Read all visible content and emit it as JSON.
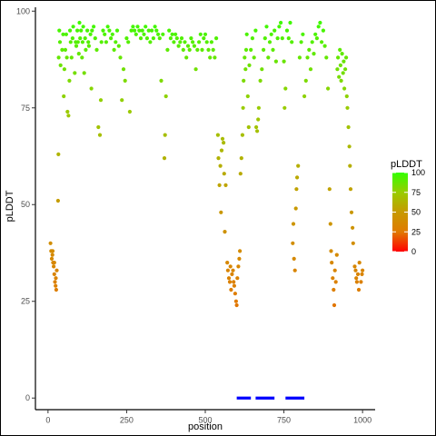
{
  "chart_data": {
    "type": "scatter",
    "xlabel": "position",
    "ylabel": "pLDDT",
    "xlim": [
      -40,
      1040
    ],
    "ylim": [
      -3,
      101
    ],
    "x_ticks": [
      0,
      250,
      500,
      750,
      1000
    ],
    "y_ticks": [
      0,
      25,
      50,
      75,
      100
    ],
    "grid": false,
    "legend": {
      "title": "pLDDT",
      "position": "right",
      "breaks": [
        0,
        25,
        50,
        75,
        100
      ],
      "colors": [
        "#ff0000",
        "#e07a00",
        "#c79a00",
        "#99cc00",
        "#33ff00"
      ]
    },
    "segment_color": "#0000ff",
    "segments": [
      {
        "x0": 600,
        "x1": 645,
        "y": 0
      },
      {
        "x0": 660,
        "x1": 720,
        "y": 0
      },
      {
        "x0": 755,
        "x1": 815,
        "y": 0
      }
    ],
    "points": [
      [
        8,
        40
      ],
      [
        10,
        38
      ],
      [
        12,
        36
      ],
      [
        14,
        37
      ],
      [
        16,
        35
      ],
      [
        18,
        34
      ],
      [
        20,
        32
      ],
      [
        22,
        30
      ],
      [
        24,
        29
      ],
      [
        26,
        28
      ],
      [
        15,
        38
      ],
      [
        20,
        35
      ],
      [
        25,
        31
      ],
      [
        28,
        33
      ],
      [
        32,
        51
      ],
      [
        33,
        63
      ],
      [
        34,
        88
      ],
      [
        36,
        95
      ],
      [
        38,
        92
      ],
      [
        40,
        86
      ],
      [
        45,
        90
      ],
      [
        48,
        94
      ],
      [
        50,
        78
      ],
      [
        52,
        85
      ],
      [
        55,
        90
      ],
      [
        58,
        94
      ],
      [
        60,
        88
      ],
      [
        62,
        74
      ],
      [
        65,
        73
      ],
      [
        68,
        82
      ],
      [
        70,
        95
      ],
      [
        72,
        92
      ],
      [
        75,
        88
      ],
      [
        78,
        93
      ],
      [
        80,
        96
      ],
      [
        85,
        84
      ],
      [
        88,
        92
      ],
      [
        90,
        91
      ],
      [
        93,
        95
      ],
      [
        95,
        92
      ],
      [
        98,
        89
      ],
      [
        100,
        97
      ],
      [
        102,
        93
      ],
      [
        105,
        95
      ],
      [
        108,
        88
      ],
      [
        110,
        92
      ],
      [
        112,
        96
      ],
      [
        115,
        84
      ],
      [
        118,
        93
      ],
      [
        120,
        90
      ],
      [
        125,
        95
      ],
      [
        128,
        92
      ],
      [
        130,
        91
      ],
      [
        135,
        94
      ],
      [
        138,
        80
      ],
      [
        140,
        95
      ],
      [
        145,
        96
      ],
      [
        150,
        93
      ],
      [
        155,
        90
      ],
      [
        160,
        70
      ],
      [
        165,
        68
      ],
      [
        168,
        77
      ],
      [
        170,
        92
      ],
      [
        175,
        95
      ],
      [
        180,
        94
      ],
      [
        185,
        92
      ],
      [
        190,
        96
      ],
      [
        195,
        95
      ],
      [
        200,
        93
      ],
      [
        205,
        94
      ],
      [
        210,
        90
      ],
      [
        215,
        92
      ],
      [
        220,
        95
      ],
      [
        225,
        91
      ],
      [
        230,
        88
      ],
      [
        235,
        77
      ],
      [
        240,
        85
      ],
      [
        245,
        82
      ],
      [
        250,
        93
      ],
      [
        255,
        92
      ],
      [
        260,
        74
      ],
      [
        265,
        95
      ],
      [
        270,
        96
      ],
      [
        275,
        95
      ],
      [
        280,
        94
      ],
      [
        285,
        96
      ],
      [
        290,
        95
      ],
      [
        295,
        93
      ],
      [
        300,
        95
      ],
      [
        305,
        94
      ],
      [
        310,
        96
      ],
      [
        315,
        93
      ],
      [
        320,
        95
      ],
      [
        325,
        92
      ],
      [
        330,
        95
      ],
      [
        335,
        93
      ],
      [
        340,
        96
      ],
      [
        345,
        95
      ],
      [
        350,
        94
      ],
      [
        355,
        93
      ],
      [
        360,
        82
      ],
      [
        365,
        94
      ],
      [
        370,
        62
      ],
      [
        372,
        68
      ],
      [
        375,
        78
      ],
      [
        380,
        90
      ],
      [
        385,
        95
      ],
      [
        390,
        93
      ],
      [
        395,
        94
      ],
      [
        400,
        92
      ],
      [
        405,
        94
      ],
      [
        410,
        93
      ],
      [
        415,
        91
      ],
      [
        420,
        92
      ],
      [
        425,
        93
      ],
      [
        430,
        90
      ],
      [
        435,
        92
      ],
      [
        440,
        88
      ],
      [
        445,
        91
      ],
      [
        450,
        90
      ],
      [
        455,
        93
      ],
      [
        460,
        92
      ],
      [
        465,
        91
      ],
      [
        470,
        85
      ],
      [
        475,
        90
      ],
      [
        480,
        92
      ],
      [
        485,
        94
      ],
      [
        490,
        90
      ],
      [
        495,
        93
      ],
      [
        500,
        94
      ],
      [
        505,
        92
      ],
      [
        510,
        90
      ],
      [
        515,
        88
      ],
      [
        520,
        92
      ],
      [
        525,
        90
      ],
      [
        530,
        88
      ],
      [
        535,
        93
      ],
      [
        540,
        68
      ],
      [
        542,
        62
      ],
      [
        545,
        55
      ],
      [
        548,
        60
      ],
      [
        550,
        48
      ],
      [
        552,
        64
      ],
      [
        555,
        67
      ],
      [
        558,
        66
      ],
      [
        560,
        58
      ],
      [
        562,
        43
      ],
      [
        565,
        55
      ],
      [
        570,
        35
      ],
      [
        572,
        33
      ],
      [
        575,
        31
      ],
      [
        578,
        30
      ],
      [
        580,
        34
      ],
      [
        582,
        28
      ],
      [
        585,
        32
      ],
      [
        588,
        33
      ],
      [
        590,
        30
      ],
      [
        592,
        29
      ],
      [
        595,
        27
      ],
      [
        598,
        25
      ],
      [
        600,
        24
      ],
      [
        602,
        31
      ],
      [
        605,
        34
      ],
      [
        608,
        36
      ],
      [
        610,
        38
      ],
      [
        612,
        58
      ],
      [
        615,
        62
      ],
      [
        618,
        68
      ],
      [
        620,
        75
      ],
      [
        622,
        82
      ],
      [
        625,
        88
      ],
      [
        628,
        85
      ],
      [
        630,
        90
      ],
      [
        632,
        94
      ],
      [
        635,
        78
      ],
      [
        638,
        70
      ],
      [
        640,
        86
      ],
      [
        645,
        90
      ],
      [
        650,
        93
      ],
      [
        655,
        88
      ],
      [
        660,
        95
      ],
      [
        662,
        70
      ],
      [
        665,
        69
      ],
      [
        668,
        72
      ],
      [
        670,
        75
      ],
      [
        675,
        82
      ],
      [
        680,
        85
      ],
      [
        685,
        90
      ],
      [
        690,
        93
      ],
      [
        695,
        96
      ],
      [
        700,
        88
      ],
      [
        705,
        92
      ],
      [
        710,
        94
      ],
      [
        715,
        90
      ],
      [
        720,
        95
      ],
      [
        725,
        87
      ],
      [
        730,
        93
      ],
      [
        735,
        96
      ],
      [
        740,
        97
      ],
      [
        745,
        93
      ],
      [
        750,
        87
      ],
      [
        752,
        75
      ],
      [
        755,
        80
      ],
      [
        760,
        95
      ],
      [
        765,
        93
      ],
      [
        770,
        97
      ],
      [
        775,
        92
      ],
      [
        778,
        40
      ],
      [
        780,
        45
      ],
      [
        782,
        36
      ],
      [
        785,
        33
      ],
      [
        788,
        49
      ],
      [
        790,
        54
      ],
      [
        792,
        57
      ],
      [
        795,
        60
      ],
      [
        800,
        88
      ],
      [
        805,
        92
      ],
      [
        810,
        94
      ],
      [
        815,
        78
      ],
      [
        820,
        82
      ],
      [
        825,
        88
      ],
      [
        830,
        90
      ],
      [
        835,
        85
      ],
      [
        840,
        92
      ],
      [
        845,
        89
      ],
      [
        850,
        94
      ],
      [
        855,
        93
      ],
      [
        860,
        96
      ],
      [
        865,
        97
      ],
      [
        870,
        92
      ],
      [
        875,
        95
      ],
      [
        880,
        91
      ],
      [
        885,
        88
      ],
      [
        890,
        80
      ],
      [
        895,
        54
      ],
      [
        898,
        45
      ],
      [
        900,
        38
      ],
      [
        902,
        35
      ],
      [
        905,
        31
      ],
      [
        908,
        28
      ],
      [
        910,
        24
      ],
      [
        912,
        33
      ],
      [
        915,
        30
      ],
      [
        918,
        37
      ],
      [
        920,
        85
      ],
      [
        922,
        88
      ],
      [
        925,
        83
      ],
      [
        928,
        90
      ],
      [
        930,
        86
      ],
      [
        932,
        82
      ],
      [
        935,
        89
      ],
      [
        938,
        84
      ],
      [
        940,
        87
      ],
      [
        942,
        80
      ],
      [
        945,
        85
      ],
      [
        948,
        88
      ],
      [
        950,
        78
      ],
      [
        952,
        75
      ],
      [
        955,
        70
      ],
      [
        958,
        65
      ],
      [
        960,
        60
      ],
      [
        962,
        54
      ],
      [
        965,
        48
      ],
      [
        968,
        44
      ],
      [
        970,
        40
      ],
      [
        975,
        34
      ],
      [
        978,
        33
      ],
      [
        980,
        31
      ],
      [
        982,
        30
      ],
      [
        985,
        32
      ],
      [
        988,
        28
      ],
      [
        990,
        35
      ],
      [
        995,
        30
      ],
      [
        998,
        32
      ],
      [
        1000,
        33
      ]
    ]
  }
}
